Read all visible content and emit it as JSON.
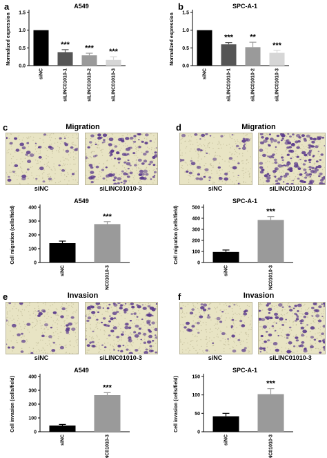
{
  "panels": {
    "a": {
      "letter": "a"
    },
    "b": {
      "letter": "b"
    },
    "c": {
      "letter": "c",
      "title": "Migration",
      "left_caption": "siNC",
      "right_caption": "siLINC01010-3"
    },
    "d": {
      "letter": "d",
      "title": "Migration",
      "left_caption": "siNC",
      "right_caption": "siLINC01010-3"
    },
    "e": {
      "letter": "e",
      "title": "Invasion",
      "left_caption": "siNC",
      "right_caption": "siLINC01010-3"
    },
    "f": {
      "letter": "f",
      "title": "Invasion",
      "left_caption": "siNC",
      "right_caption": "siLINC01010-3"
    }
  },
  "colors": {
    "black": "#000000",
    "dark_gray": "#555555",
    "mid_gray": "#9a9a9a",
    "light_gray": "#d6d6d6",
    "micro_bg": "#e8e4c4",
    "cell": "#5a3a8c"
  },
  "chart_data": [
    {
      "id": "a",
      "type": "bar",
      "title": "A549",
      "ylabel": "Normalized expression",
      "categories": [
        "siNC",
        "siLINC01010-1",
        "siLINC01010-2",
        "siLINC01010-3"
      ],
      "values": [
        1.0,
        0.38,
        0.29,
        0.16
      ],
      "errors": [
        0,
        0.07,
        0.06,
        0.09
      ],
      "significance": [
        "",
        "***",
        "***",
        "***"
      ],
      "colors": [
        "#000000",
        "#555555",
        "#9a9a9a",
        "#d6d6d6"
      ],
      "ylim": [
        0,
        1.5
      ],
      "yticks": [
        "0.0",
        "0.5",
        "1.0",
        "1.5"
      ],
      "ytick_values": [
        0,
        0.5,
        1.0,
        1.5
      ]
    },
    {
      "id": "b",
      "type": "bar",
      "title": "SPC-A-1",
      "ylabel": "Normalized expression",
      "categories": [
        "siNC",
        "siLINC01010-1",
        "siLINC01010-2",
        "siLINC01010-3"
      ],
      "values": [
        1.0,
        0.6,
        0.52,
        0.36
      ],
      "errors": [
        0,
        0.05,
        0.14,
        0.07
      ],
      "significance": [
        "",
        "***",
        "**",
        "***"
      ],
      "colors": [
        "#000000",
        "#555555",
        "#9a9a9a",
        "#d6d6d6"
      ],
      "ylim": [
        0,
        1.5
      ],
      "yticks": [
        "0.0",
        "0.5",
        "1.0",
        "1.5"
      ],
      "ytick_values": [
        0,
        0.5,
        1.0,
        1.5
      ]
    },
    {
      "id": "c",
      "type": "bar",
      "title": "A549",
      "ylabel": "Cell migration (cells/field)",
      "categories": [
        "siNC",
        "siLINC01010-3"
      ],
      "values": [
        140,
        278
      ],
      "errors": [
        15,
        18
      ],
      "significance": [
        "",
        "***"
      ],
      "colors": [
        "#000000",
        "#9a9a9a"
      ],
      "ylim": [
        0,
        400
      ],
      "yticks": [
        "0",
        "100",
        "200",
        "300",
        "400"
      ],
      "ytick_values": [
        0,
        100,
        200,
        300,
        400
      ]
    },
    {
      "id": "d",
      "type": "bar",
      "title": "SPC-A-1",
      "ylabel": "Cell migration (cells/field)",
      "categories": [
        "siNC",
        "siLINC01010-3"
      ],
      "values": [
        95,
        385
      ],
      "errors": [
        18,
        30
      ],
      "significance": [
        "",
        "***"
      ],
      "colors": [
        "#000000",
        "#9a9a9a"
      ],
      "ylim": [
        0,
        500
      ],
      "yticks": [
        "0",
        "100",
        "200",
        "300",
        "400",
        "500"
      ],
      "ytick_values": [
        0,
        100,
        200,
        300,
        400,
        500
      ]
    },
    {
      "id": "e",
      "type": "bar",
      "title": "A549",
      "ylabel": "Cell invasion (cells/field)",
      "categories": [
        "siNC",
        "siLINC01010-3"
      ],
      "values": [
        45,
        265
      ],
      "errors": [
        8,
        18
      ],
      "significance": [
        "",
        "***"
      ],
      "colors": [
        "#000000",
        "#9a9a9a"
      ],
      "ylim": [
        0,
        400
      ],
      "yticks": [
        "0",
        "100",
        "200",
        "300",
        "400"
      ],
      "ytick_values": [
        0,
        100,
        200,
        300,
        400
      ]
    },
    {
      "id": "f",
      "type": "bar",
      "title": "SPC-A-1",
      "ylabel": "Cell invasion (cells/field)",
      "categories": [
        "siNC",
        "siLINC01010-3"
      ],
      "values": [
        42,
        102
      ],
      "errors": [
        8,
        15
      ],
      "significance": [
        "",
        "***"
      ],
      "colors": [
        "#000000",
        "#9a9a9a"
      ],
      "ylim": [
        0,
        150
      ],
      "yticks": [
        "0",
        "50",
        "100",
        "150"
      ],
      "ytick_values": [
        0,
        50,
        100,
        150
      ]
    }
  ]
}
